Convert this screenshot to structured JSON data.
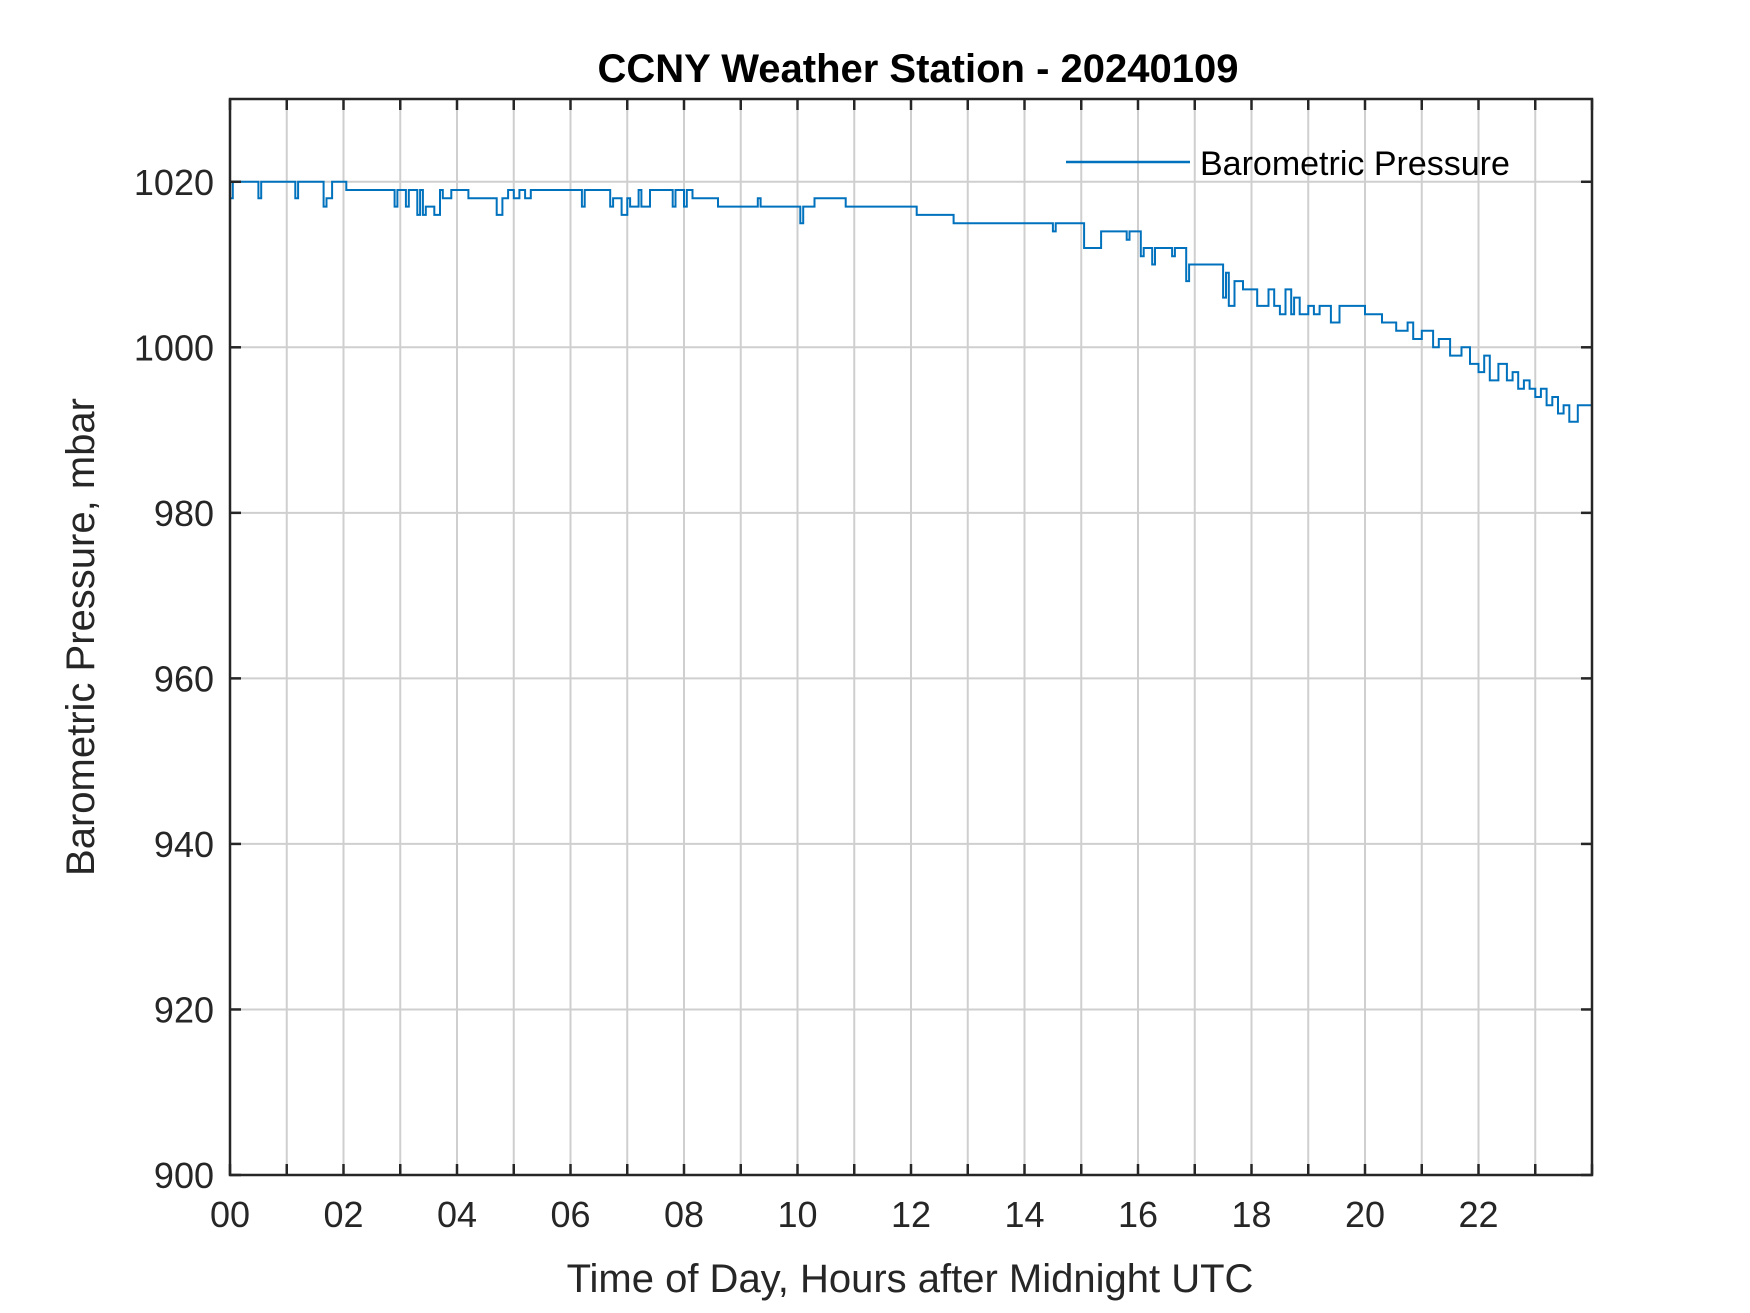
{
  "chart_data": {
    "type": "line",
    "title": "CCNY Weather Station - 20240109",
    "xlabel": "Time of Day, Hours after Midnight UTC",
    "ylabel": "Barometric Pressure, mbar",
    "xlim": [
      0,
      24
    ],
    "ylim": [
      900,
      1030
    ],
    "grid": true,
    "legend_position": "top-right",
    "line_color": "#0072BD",
    "xticks": [
      0,
      2,
      4,
      6,
      8,
      10,
      12,
      14,
      16,
      18,
      20,
      22
    ],
    "xtick_labels": [
      "00",
      "02",
      "04",
      "06",
      "08",
      "10",
      "12",
      "14",
      "16",
      "18",
      "20",
      "22"
    ],
    "yticks": [
      900,
      920,
      940,
      960,
      980,
      1000,
      1020
    ],
    "ytick_labels": [
      "900",
      "920",
      "940",
      "960",
      "980",
      "1000",
      "1020"
    ],
    "series": [
      {
        "name": "Barometric Pressure",
        "x": [
          0,
          0.05,
          0.1,
          0.5,
          0.55,
          0.6,
          1.15,
          1.2,
          1.25,
          1.65,
          1.7,
          1.8,
          1.85,
          2.05,
          2.1,
          2.9,
          2.95,
          3.1,
          3.15,
          3.3,
          3.35,
          3.4,
          3.45,
          3.6,
          3.7,
          3.75,
          3.9,
          4.2,
          4.7,
          4.8,
          4.9,
          5.0,
          5.1,
          5.2,
          5.3,
          5.45,
          6.2,
          6.25,
          6.7,
          6.75,
          6.9,
          7.0,
          7.05,
          7.2,
          7.25,
          7.4,
          7.45,
          7.8,
          7.85,
          8.0,
          8.05,
          8.15,
          8.2,
          8.3,
          8.6,
          8.95,
          9.3,
          9.35,
          9.6,
          10.05,
          10.1,
          10.25,
          10.3,
          10.5,
          10.85,
          12.1,
          12.75,
          14.5,
          14.55,
          14.6,
          15.05,
          15.35,
          15.8,
          15.85,
          16.05,
          16.1,
          16.25,
          16.3,
          16.6,
          16.65,
          16.85,
          16.9,
          17.1,
          17.5,
          17.55,
          17.6,
          17.7,
          17.75,
          17.85,
          18.1,
          18.3,
          18.4,
          18.5,
          18.6,
          18.7,
          18.75,
          18.85,
          19.0,
          19.1,
          19.2,
          19.4,
          19.55,
          19.75,
          20.0,
          20.3,
          20.55,
          20.75,
          20.85,
          21.0,
          21.2,
          21.3,
          21.5,
          21.7,
          21.85,
          22.0,
          22.1,
          22.2,
          22.35,
          22.5,
          22.6,
          22.7,
          22.8,
          22.9,
          23.0,
          23.1,
          23.2,
          23.3,
          23.4,
          23.5,
          23.6,
          23.75,
          24.0
        ],
        "y": [
          1018,
          1020,
          1020,
          1018,
          1020,
          1020,
          1018,
          1020,
          1020,
          1017,
          1018,
          1020,
          1020,
          1019,
          1019,
          1017,
          1019,
          1017,
          1019,
          1016,
          1019,
          1016,
          1017,
          1016,
          1019,
          1018,
          1019,
          1018,
          1016,
          1018,
          1019,
          1018,
          1019,
          1018,
          1019,
          1019,
          1017,
          1019,
          1017,
          1018,
          1016,
          1018,
          1017,
          1019,
          1017,
          1019,
          1019,
          1017,
          1019,
          1017,
          1019,
          1018,
          1018,
          1018,
          1017,
          1017,
          1018,
          1017,
          1017,
          1015,
          1017,
          1017,
          1018,
          1018,
          1017,
          1016,
          1015,
          1014,
          1015,
          1015,
          1012,
          1014,
          1013,
          1014,
          1011,
          1012,
          1010,
          1012,
          1011,
          1012,
          1008,
          1010,
          1010,
          1006,
          1009,
          1005,
          1008,
          1008,
          1007,
          1005,
          1007,
          1005,
          1004,
          1007,
          1004,
          1006,
          1004,
          1005,
          1004,
          1005,
          1003,
          1005,
          1005,
          1004,
          1003,
          1002,
          1003,
          1001,
          1002,
          1000,
          1001,
          999,
          1000,
          998,
          997,
          999,
          996,
          998,
          996,
          997,
          995,
          996,
          995,
          994,
          995,
          993,
          994,
          992,
          993,
          991,
          993,
          992
        ]
      }
    ]
  }
}
